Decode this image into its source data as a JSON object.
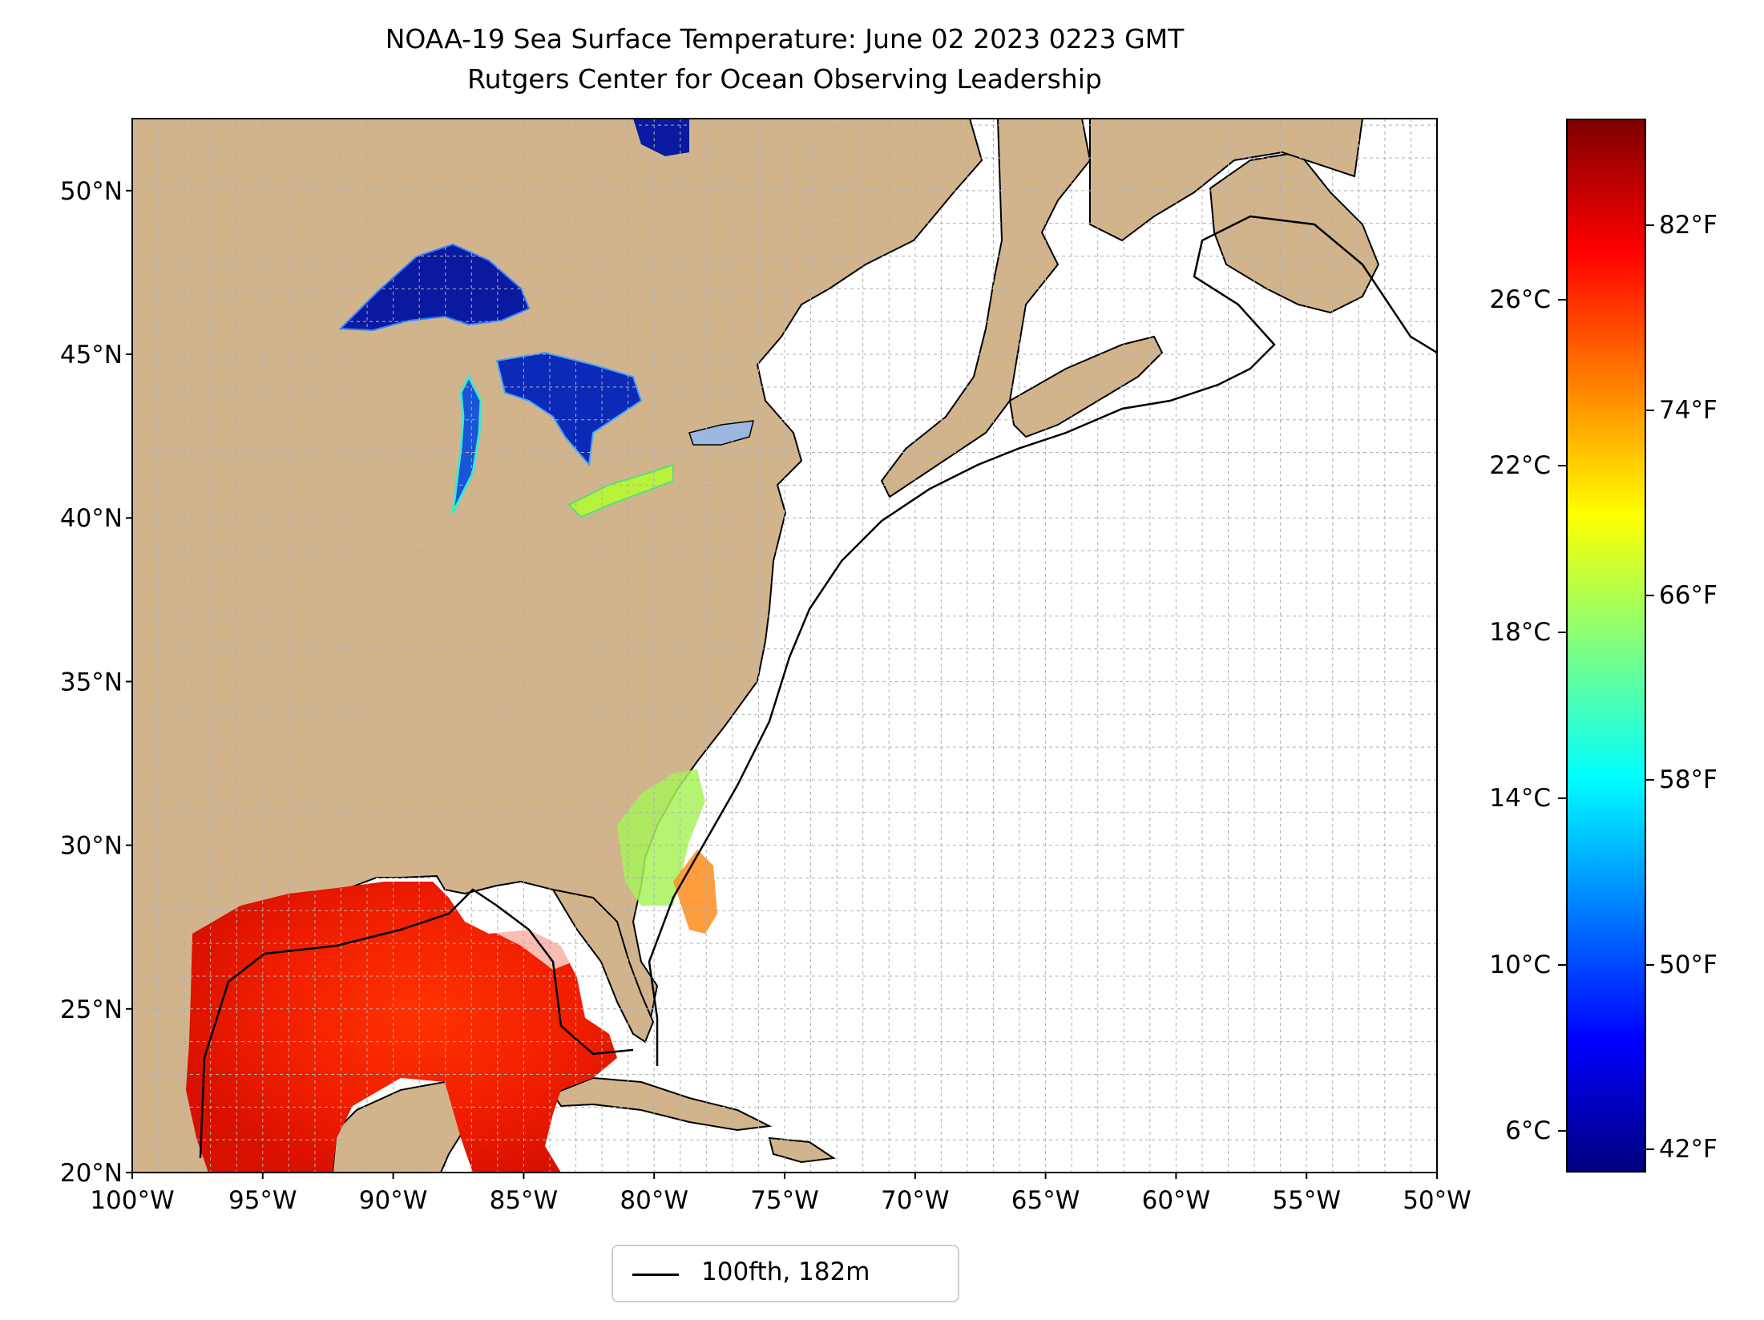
{
  "title": "NOAA-19 Sea Surface Temperature: June 02 2023 0223 GMT",
  "subtitle": "Rutgers Center for Ocean Observing Leadership",
  "map": {
    "lon_ticks": [
      "100°W",
      "95°W",
      "90°W",
      "85°W",
      "80°W",
      "75°W",
      "70°W",
      "65°W",
      "60°W",
      "55°W",
      "50°W"
    ],
    "lat_ticks": [
      "20°N",
      "25°N",
      "30°N",
      "35°N",
      "40°N",
      "45°N",
      "50°N"
    ],
    "extent": {
      "lon": [
        -100,
        -50
      ],
      "lat": [
        20,
        52.2
      ]
    },
    "land_color": "#d2b48c",
    "lake_color": "#9bb8e0",
    "grid": "dashed",
    "contour_color": "#000000"
  },
  "legend": {
    "label": "100fth, 182m"
  },
  "colorbar": {
    "colormap": "jet",
    "colors": [
      "#00007f",
      "#0000ff",
      "#007fff",
      "#00ffff",
      "#7fff7f",
      "#ffff00",
      "#ff7f00",
      "#ff0000",
      "#7f0000"
    ],
    "celsius_ticks": [
      "6°C",
      "10°C",
      "14°C",
      "18°C",
      "22°C",
      "26°C"
    ],
    "fahrenheit_ticks": [
      "42°F",
      "50°F",
      "58°F",
      "66°F",
      "74°F",
      "82°F"
    ]
  }
}
